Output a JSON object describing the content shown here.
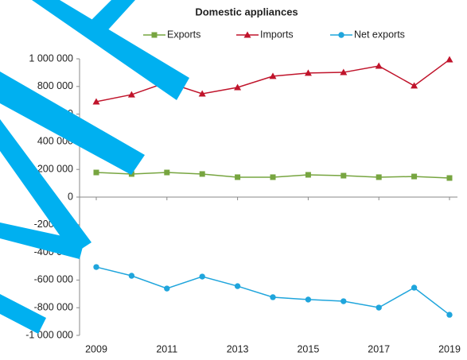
{
  "chart_data": {
    "type": "line",
    "title": "Domestic appliances",
    "x": [
      2009,
      2010,
      2011,
      2012,
      2013,
      2014,
      2015,
      2016,
      2017,
      2018,
      2019
    ],
    "xlim": [
      2009,
      2019
    ],
    "xticks": [
      2009,
      2011,
      2013,
      2015,
      2017,
      2019
    ],
    "ylim": [
      -1000000,
      1000000
    ],
    "yticks": [
      {
        "value": -1000000,
        "label": "-1 000 000"
      },
      {
        "value": -800000,
        "label": "-800 000"
      },
      {
        "value": -600000,
        "label": "-600 000"
      },
      {
        "value": -400000,
        "label": "-400 000"
      },
      {
        "value": -200000,
        "label": "-200 000"
      },
      0,
      {
        "value": 200000,
        "label": "200 000"
      },
      {
        "value": 400000,
        "label": "400 000"
      },
      {
        "value": 600000,
        "label": "600 000"
      },
      {
        "value": 800000,
        "label": "800 000"
      },
      {
        "value": 1000000,
        "label": "1 000 000"
      }
    ],
    "grid": false,
    "legend": "top",
    "series": [
      {
        "name": "Exports",
        "color": "#77a540",
        "marker": "square",
        "values": [
          178000,
          167000,
          178000,
          167000,
          144000,
          144000,
          161000,
          155000,
          144000,
          149000,
          138000
        ]
      },
      {
        "name": "Imports",
        "color": "#c0142b",
        "marker": "triangle",
        "values": [
          690000,
          741000,
          830000,
          747000,
          793000,
          874000,
          897000,
          902000,
          948000,
          805000,
          994000
        ]
      },
      {
        "name": "Net exports",
        "color": "#1fa5dc",
        "marker": "circle",
        "values": [
          -506000,
          -569000,
          -661000,
          -575000,
          -644000,
          -724000,
          -741000,
          -753000,
          -799000,
          -655000,
          -851000
        ]
      }
    ]
  }
}
